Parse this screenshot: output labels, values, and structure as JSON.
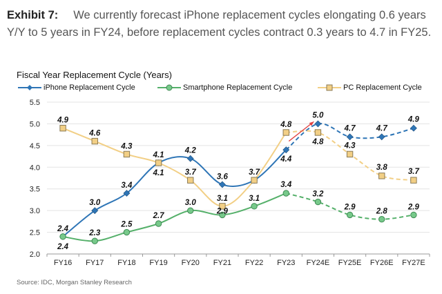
{
  "exhibit": {
    "label": "Exhibit 7:",
    "text": "We currently forecast iPhone replacement cycles elongating 0.6 years Y/Y to 5 years in FY24, before replacement cycles contract 0.3 years to 4.7 in FY25."
  },
  "source": "Source: IDC, Morgan Stanley Research",
  "chart_data": {
    "type": "line",
    "title": "Fiscal Year Replacement Cycle (Years)",
    "categories": [
      "FY16",
      "FY17",
      "FY18",
      "FY19",
      "FY20",
      "FY21",
      "FY22",
      "FY23",
      "FY24E",
      "FY25E",
      "FY26E",
      "FY27E"
    ],
    "ylim": [
      2.0,
      5.5
    ],
    "yticks": [
      "2.0",
      "2.5",
      "3.0",
      "3.5",
      "4.0",
      "4.5",
      "5.0",
      "5.5"
    ],
    "xlabel": "",
    "ylabel": "",
    "grid": true,
    "legend": "top",
    "actual_through": "FY23",
    "series": [
      {
        "name": "iPhone Replacement Cycle",
        "color": "#2e75b6",
        "marker": "diamond",
        "values": [
          2.4,
          3.0,
          3.4,
          4.1,
          4.2,
          3.6,
          3.7,
          4.4,
          5.0,
          4.7,
          4.7,
          4.9
        ],
        "labels": [
          "2.4",
          "3.0",
          "3.4",
          "4.1",
          "4.2",
          "3.6",
          "3.7",
          "4.4",
          "5.0",
          "4.7",
          "4.7",
          "4.9"
        ]
      },
      {
        "name": "Smartphone Replacement Cycle",
        "color": "#55b06a",
        "marker": "circle",
        "values": [
          2.4,
          2.3,
          2.5,
          2.7,
          3.0,
          2.9,
          3.1,
          3.4,
          3.2,
          2.9,
          2.8,
          2.9
        ],
        "labels": [
          "2.4",
          "2.3",
          "2.5",
          "2.7",
          "3.0",
          "2.9",
          "3.1",
          "3.4",
          "3.2",
          "2.9",
          "2.8",
          "2.9"
        ]
      },
      {
        "name": "PC Replacement Cycle",
        "color": "#f2cf85",
        "marker": "square",
        "values": [
          4.9,
          4.6,
          4.3,
          4.1,
          3.7,
          3.1,
          3.7,
          4.8,
          4.8,
          4.3,
          3.8,
          3.7
        ],
        "labels": [
          "4.9",
          "4.6",
          "4.3",
          "4.1",
          "3.7",
          "3.1",
          "",
          "4.8",
          "4.8",
          "4.3",
          "3.8",
          "3.7"
        ]
      }
    ],
    "annotations": [
      {
        "type": "arrow",
        "color": "#e04040",
        "from": [
          "FY23",
          4.6
        ],
        "to": [
          "FY24E",
          5.05
        ]
      }
    ]
  }
}
